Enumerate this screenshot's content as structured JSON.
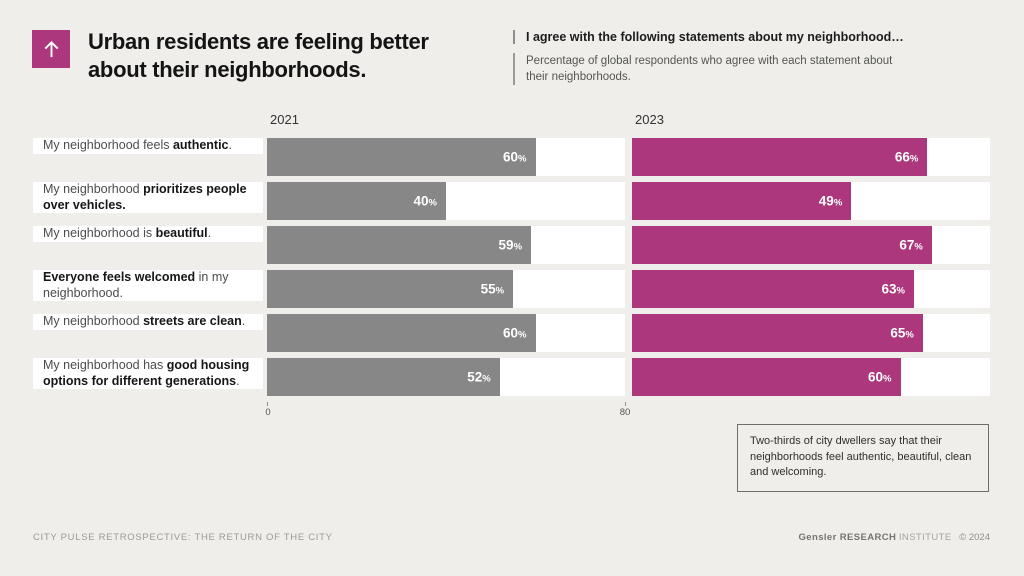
{
  "page": {
    "background": "#EFEEEB"
  },
  "header": {
    "accent_color": "#AC377C",
    "icon": "arrow-up-icon",
    "title_line1": "Urban residents are feeling better",
    "title_line2": "about their neighborhoods.",
    "statement_heading": "I agree with the following statements about my neighborhood…",
    "statement_subtext": "Percentage of global respondents who agree with each statement about their neighborhoods."
  },
  "chart_data": {
    "type": "bar",
    "orientation": "horizontal",
    "unit": "%",
    "axis": {
      "min": 0,
      "max": 80,
      "tick_labels": [
        "0",
        "80"
      ]
    },
    "column_headers": [
      "2021",
      "2023"
    ],
    "series_colors": {
      "2021": "#878787",
      "2023": "#AC377C"
    },
    "categories": [
      "My neighborhood feels authentic.",
      "My neighborhood prioritizes people over vehicles.",
      "My neighborhood is beautiful.",
      "Everyone feels welcomed in my neighborhood.",
      "My neighborhood streets are clean.",
      "My neighborhood has good housing options for different generations."
    ],
    "series": [
      {
        "name": "2021",
        "values": [
          60,
          40,
          59,
          55,
          60,
          52
        ]
      },
      {
        "name": "2023",
        "values": [
          66,
          49,
          67,
          63,
          65,
          60
        ]
      }
    ],
    "rows": [
      {
        "label_prefix": "My neighborhood feels ",
        "label_bold": "authentic",
        "label_suffix": ".",
        "v2021": 60,
        "v2023": 66
      },
      {
        "label_prefix": "My neighborhood ",
        "label_bold": "prioritizes people over vehicles.",
        "label_suffix": "",
        "v2021": 40,
        "v2023": 49
      },
      {
        "label_prefix": "My neighborhood is ",
        "label_bold": "beautiful",
        "label_suffix": ".",
        "v2021": 59,
        "v2023": 67
      },
      {
        "label_prefix": "",
        "label_bold": "Everyone feels welcomed",
        "label_suffix": " in my neighborhood.",
        "v2021": 55,
        "v2023": 63
      },
      {
        "label_prefix": "My neighborhood ",
        "label_bold": "streets are clean",
        "label_suffix": ".",
        "v2021": 60,
        "v2023": 65
      },
      {
        "label_prefix": "My neighborhood has ",
        "label_bold": "good housing options for different generations",
        "label_suffix": ".",
        "v2021": 52,
        "v2023": 60
      }
    ]
  },
  "annotation": "Two-thirds of city dwellers say that their neighborhoods feel authentic, beautiful, clean and welcoming.",
  "footer": {
    "left": "CITY PULSE RETROSPECTIVE: THE RETURN OF THE CITY",
    "brand_bold": "Gensler RESEARCH",
    "brand_light": "INSTITUTE",
    "copyright": "© 2024"
  }
}
